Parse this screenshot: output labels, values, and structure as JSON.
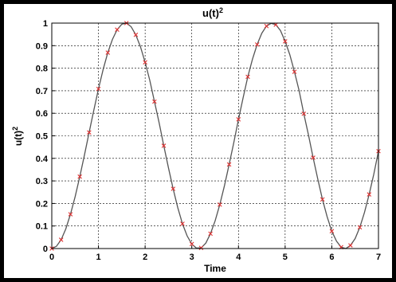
{
  "chart_data": {
    "type": "line",
    "title": "u(t)",
    "title_sup": "2",
    "xlabel": "Time",
    "ylabel": "u(t)",
    "ylabel_sup": "2",
    "xlim": [
      0,
      7
    ],
    "ylim": [
      0,
      1
    ],
    "xticks": [
      "0",
      "1",
      "2",
      "3",
      "4",
      "5",
      "6",
      "7"
    ],
    "yticks": [
      "0",
      "0.1",
      "0.2",
      "0.3",
      "0.4",
      "0.5",
      "0.6",
      "0.7",
      "0.8",
      "0.9",
      "1"
    ],
    "grid": true,
    "series": [
      {
        "style": "line",
        "color": "#555555",
        "x": [
          0,
          0.1,
          0.2,
          0.3,
          0.4,
          0.5,
          0.6,
          0.7,
          0.8,
          0.9,
          1.0,
          1.1,
          1.2,
          1.3,
          1.4,
          1.5,
          1.6,
          1.7,
          1.8,
          1.9,
          2.0,
          2.1,
          2.2,
          2.3,
          2.4,
          2.5,
          2.6,
          2.7,
          2.8,
          2.9,
          3.0,
          3.1,
          3.2,
          3.3,
          3.4,
          3.5,
          3.6,
          3.7,
          3.8,
          3.9,
          4.0,
          4.1,
          4.2,
          4.3,
          4.4,
          4.5,
          4.6,
          4.7,
          4.8,
          4.9,
          5.0,
          5.1,
          5.2,
          5.3,
          5.4,
          5.5,
          5.6,
          5.7,
          5.8,
          5.9,
          6.0,
          6.1,
          6.2,
          6.3,
          6.4,
          6.5,
          6.6,
          6.7,
          6.8,
          6.9,
          7.0
        ],
        "y": [
          0.0,
          0.01,
          0.039,
          0.087,
          0.152,
          0.23,
          0.319,
          0.415,
          0.515,
          0.613,
          0.708,
          0.794,
          0.869,
          0.928,
          0.971,
          0.995,
          1.0,
          0.984,
          0.948,
          0.895,
          0.826,
          0.746,
          0.652,
          0.558,
          0.456,
          0.358,
          0.265,
          0.181,
          0.11,
          0.056,
          0.02,
          0.002,
          0.003,
          0.024,
          0.066,
          0.123,
          0.195,
          0.279,
          0.373,
          0.47,
          0.573,
          0.669,
          0.762,
          0.84,
          0.905,
          0.955,
          0.987,
          0.999,
          0.993,
          0.967,
          0.919,
          0.86,
          0.784,
          0.7,
          0.598,
          0.504,
          0.403,
          0.308,
          0.218,
          0.141,
          0.077,
          0.033,
          0.006,
          0.0,
          0.014,
          0.044,
          0.094,
          0.16,
          0.24,
          0.33,
          0.432
        ]
      },
      {
        "style": "markers",
        "marker": "x",
        "color": "#e03030",
        "x": [
          0,
          0.2,
          0.4,
          0.6,
          0.8,
          1.0,
          1.2,
          1.4,
          1.6,
          1.8,
          2.0,
          2.2,
          2.4,
          2.6,
          2.8,
          3.0,
          3.2,
          3.4,
          3.6,
          3.8,
          4.0,
          4.2,
          4.4,
          4.6,
          4.8,
          5.0,
          5.2,
          5.4,
          5.6,
          5.8,
          6.0,
          6.2,
          6.4,
          6.6,
          6.8,
          7.0
        ],
        "y": [
          0.0,
          0.039,
          0.152,
          0.319,
          0.515,
          0.708,
          0.869,
          0.971,
          1.0,
          0.948,
          0.826,
          0.652,
          0.456,
          0.265,
          0.11,
          0.02,
          0.003,
          0.066,
          0.195,
          0.373,
          0.573,
          0.762,
          0.905,
          0.987,
          0.993,
          0.919,
          0.784,
          0.598,
          0.403,
          0.218,
          0.077,
          0.006,
          0.014,
          0.094,
          0.24,
          0.432
        ]
      }
    ]
  }
}
